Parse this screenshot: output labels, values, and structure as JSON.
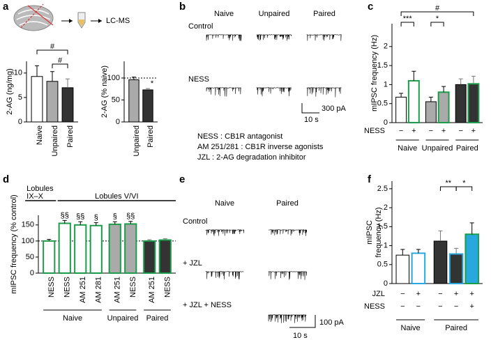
{
  "chart_data": [
    {
      "type": "bar",
      "ylabel": [
        "2-AG (ng/mg)"
      ],
      "ylim": [
        0,
        12.4
      ],
      "yticks": [
        0,
        5,
        10
      ],
      "bars": [
        {
          "label": "Naive",
          "value": 9.3,
          "error": 2.2,
          "fill": "#ffffff",
          "edge": "#000000"
        },
        {
          "label": "Unpaired",
          "value": 8.3,
          "error": 2.0,
          "fill": "#aaaaaa",
          "edge": "#000000"
        },
        {
          "label": "Paired",
          "value": 7.0,
          "error": 1.8,
          "fill": "#333333",
          "edge": "#000000"
        }
      ],
      "annotations": [
        "#",
        "#"
      ]
    },
    {
      "type": "bar",
      "ylabel": [
        "2-AG (% naive)"
      ],
      "ylim": [
        0,
        138
      ],
      "yticks": [
        0,
        50,
        100
      ],
      "refline": 100,
      "bars": [
        {
          "label": "Unpaired",
          "value": 96,
          "error": 6,
          "fill": "#aaaaaa",
          "edge": "#000000"
        },
        {
          "label": "Paired",
          "value": 73,
          "error": 3,
          "fill": "#333333",
          "edge": "#000000"
        }
      ],
      "annotations": [
        "*"
      ]
    },
    {
      "type": "bar",
      "ylabel": [
        "mIPSC frequency (Hz)"
      ],
      "ylim": [
        0,
        2.6
      ],
      "yticks": [
        0,
        0.5,
        1,
        1.5,
        2
      ],
      "row_names": [
        "NESS"
      ],
      "groups": [
        {
          "label": "Naive",
          "bars": [
            {
              "rows": [
                "−"
              ],
              "value": 0.67,
              "error": 0.1,
              "fill": "#ffffff",
              "edge": "#000000"
            },
            {
              "rows": [
                "+"
              ],
              "value": 1.1,
              "error": 0.25,
              "fill": "#ffffff",
              "edge": "#1a9e4a"
            }
          ]
        },
        {
          "label": "Unpaired",
          "bars": [
            {
              "rows": [
                "−"
              ],
              "value": 0.55,
              "error": 0.12,
              "fill": "#aaaaaa",
              "edge": "#000000"
            },
            {
              "rows": [
                "+"
              ],
              "value": 0.8,
              "error": 0.15,
              "fill": "#aaaaaa",
              "edge": "#1a9e4a"
            }
          ]
        },
        {
          "label": "Paired",
          "bars": [
            {
              "rows": [
                "−"
              ],
              "value": 1.0,
              "error": 0.15,
              "fill": "#333333",
              "edge": "#000000"
            },
            {
              "rows": [
                "+"
              ],
              "value": 1.02,
              "error": 0.2,
              "fill": "#333333",
              "edge": "#1a9e4a"
            }
          ]
        }
      ],
      "annotations": [
        "***",
        "*",
        "#"
      ]
    },
    {
      "type": "bar",
      "ylabel": [
        "mIPSC frequency (% control)"
      ],
      "ylim": [
        0,
        180
      ],
      "yticks": [
        0,
        50,
        100,
        150
      ],
      "refline": 100,
      "regions": [
        [
          "Lobules",
          "IX–X"
        ],
        [
          "Lobules V/VI"
        ]
      ],
      "groups": [
        {
          "label": "Naive",
          "bars": [
            {
              "label": "NESS",
              "value": 100,
              "error": 5,
              "fill": "#ffffff",
              "edge": "#1a9e4a"
            },
            {
              "label": "NESS",
              "value": 155,
              "error": 9,
              "fill": "#ffffff",
              "edge": "#1a9e4a"
            },
            {
              "label": "AM 251",
              "value": 150,
              "error": 10,
              "fill": "#ffffff",
              "edge": "#1a9e4a"
            },
            {
              "label": "AM 281",
              "value": 148,
              "error": 9,
              "fill": "#ffffff",
              "edge": "#1a9e4a"
            }
          ]
        },
        {
          "label": "Unpaired",
          "bars": [
            {
              "label": "AM 251",
              "value": 152,
              "error": 8,
              "fill": "#aaaaaa",
              "edge": "#1a9e4a"
            },
            {
              "label": "NESS",
              "value": 153,
              "error": 8,
              "fill": "#aaaaaa",
              "edge": "#1a9e4a"
            }
          ]
        },
        {
          "label": "Paired",
          "bars": [
            {
              "label": "AM 251",
              "value": 100,
              "error": 4,
              "fill": "#333333",
              "edge": "#1a9e4a"
            },
            {
              "label": "NESS",
              "value": 103,
              "error": 4,
              "fill": "#333333",
              "edge": "#1a9e4a"
            }
          ]
        }
      ],
      "annotations": [
        "§§",
        "§§",
        "§",
        "§",
        "§§"
      ]
    },
    {
      "type": "bar",
      "ylabel": [
        "mIPSC",
        "frequency (Hz)"
      ],
      "ylim": [
        0,
        2.7
      ],
      "yticks": [
        0,
        0.5,
        1,
        1.5,
        2,
        2.5
      ],
      "row_names": [
        "JZL",
        "NESS"
      ],
      "groups": [
        {
          "label": "Naive",
          "bars": [
            {
              "rows": [
                "−",
                "−"
              ],
              "value": 0.75,
              "error": 0.15,
              "fill": "#ffffff",
              "edge": "#000000"
            },
            {
              "rows": [
                "+",
                "−"
              ],
              "value": 0.8,
              "error": 0.1,
              "fill": "#ffffff",
              "edge": "#29a8e0"
            }
          ]
        },
        {
          "label": "Paired",
          "bars": [
            {
              "rows": [
                "−",
                "−"
              ],
              "value": 1.12,
              "error": 0.27,
              "fill": "#333333",
              "edge": "#000000"
            },
            {
              "rows": [
                "+",
                "−"
              ],
              "value": 0.78,
              "error": 0.15,
              "fill": "#333333",
              "edge": "#29a8e0"
            },
            {
              "rows": [
                "+",
                "+"
              ],
              "value": 1.3,
              "error": 0.3,
              "fill": "#29a8e0",
              "edge": "#1a9e4a"
            }
          ]
        }
      ],
      "annotations": [
        "**",
        "*"
      ]
    }
  ],
  "panels": {
    "letters": [
      "a",
      "b",
      "c",
      "d",
      "e",
      "f"
    ],
    "a_flow": "LC-MS",
    "b": {
      "columns": [
        "Naive",
        "Unpaired",
        "Paired"
      ],
      "rows": [
        "Control",
        "NESS"
      ],
      "scale_y": "300 pA",
      "scale_x": "10 s",
      "legend": [
        "NESS : CB1R antagonist",
        "AM 251/281 : CB1R inverse agonists",
        "JZL : 2-AG degradation inhibitor"
      ]
    },
    "e": {
      "columns": [
        "Naive",
        "Paired"
      ],
      "rows": [
        "Control",
        "+ JZL",
        "+ JZL + NESS"
      ],
      "scale_y": "100 pA",
      "scale_x": "10 s"
    }
  }
}
